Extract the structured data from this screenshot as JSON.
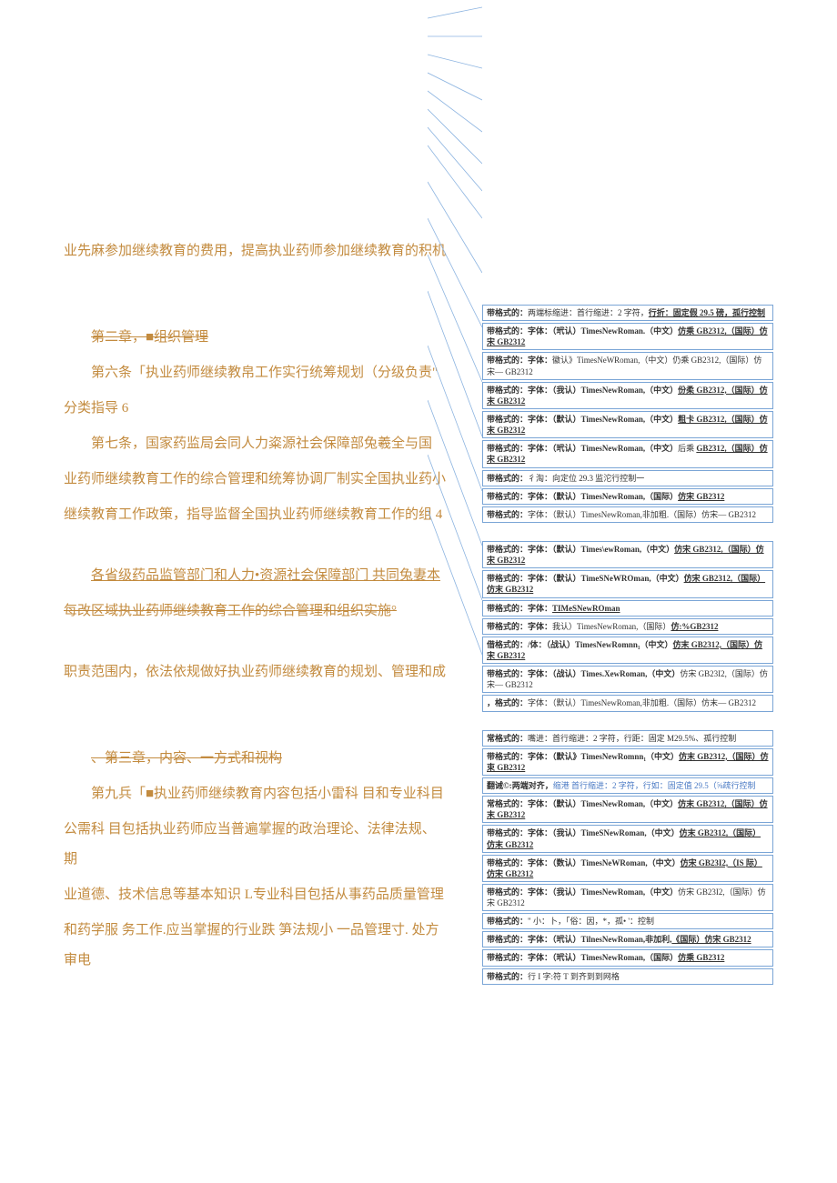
{
  "main": {
    "p1": "业先麻参加继续教育的费用，提高执业药师参加继续教育的积机",
    "ch2_title": "第二章，■组织管理",
    "p2a": "第六条「执业药师继续教帛工作实行统筹规划（分级负责\"",
    "p2b": "分类指导 6",
    "p3": "第七条，国家药监局会同人力粢源社会保障部兔羲全与国",
    "p4": "业药师继续教育工作的综合管理和统筹协调厂制实全国执业药小",
    "p5": "继续教育工作政策，指导监督全国执业药师继续教育工作的组 4",
    "p6": "各省级药品监管部门和人力•资源社会保障部门 共同兔妻本",
    "p7": "每改区域执业药师继续教育工作的综合管理和组织实施°",
    "p8": "职责范围内，依法依规做好执业药师继续教育的规划、管理和成",
    "ch3_title": "、第三章，内容、一方式和视构",
    "p9": "第九兵「■执业药师继续教育内容包括小雷科 目和专业科目",
    "p10": "公需科 目包括执业药师应当普遍掌握的政治理论、法律法规、期",
    "p11": "业道德、技术信息等基本知识 L专业科目包括从事药品质量管理",
    "p12": "和药学服 务工作.应当掌握的行业跌 笋法规小 一品管理寸. 处方审电"
  },
  "comments": [
    {
      "pre": "带格式的：",
      "txt": "两端标缩进：首行缩进：2 字符，",
      "u": "行折：固定假 29.5 磅，孤行控制"
    },
    {
      "pre": "带格式的：字体：（玳认）TimesNewRoman.（中文）",
      "u": "仿乘 GB2312,（国际）仿宋 GB2312"
    },
    {
      "pre": "带格式的：字体：",
      "txt": "徽认》TimesNeWRoman,（中文）仍乘 GB2312,（国际）仿宋— GB2312"
    },
    {
      "pre": "带格式的：字体：（我认）TimesNewRoman,（中文）",
      "u": "份柔 GB2312,（国际）仿末 GB2312"
    },
    {
      "pre": "带格式的：字体：（默认）TimesNewRoman,（中文）",
      "u": "粗卡 GB2312,（国际）仿末 GB2312"
    },
    {
      "pre": "带格式的：字体：（玳认）TimesNewRoman,（中文）",
      "txt": "后乘 ",
      "u": "GB2312,（国际）仿宋 GB2312"
    },
    {
      "pre": "带格式的：",
      "txt": "彳淘：向定位 29.3 监沱行控制一"
    },
    {
      "pre": "带格式的：字体：（默认）TimesNewRoman,（国际）",
      "u": "仿宋 GB2312"
    },
    {
      "pre": "带格式的：",
      "txt": "字体：（默认）TimesNewRoman,非加粗.（国际）仿宋— GB2312"
    },
    {
      "pre": "",
      "txt": "",
      "spacer": true
    },
    {
      "pre": "带格式的：字体：（默认）Times\\ewRoman,（中文）",
      "u": "仿宋 GB2312,（国际）仿宋 GB2312"
    },
    {
      "pre": "带格式的：字体：（默认）TimeSNeWROman,（中文）",
      "u": "仿宋 GB2312,（国际）仿末 GB2312"
    },
    {
      "pre": "带格式的：字体：",
      "u": "TIMeSNewROman"
    },
    {
      "pre": "带格式的：字体：",
      "txt": "我认）TimesNewRoman,（国际）",
      "u": "仿:%GB2312"
    },
    {
      "pre": "借格式的：/体：（战认）TimesNewRomnn₁（中文）",
      "u": "仿末 GB2312,（国际）仿宋 GB2312"
    },
    {
      "pre": "带格式的：字体：（战认）Times.XewRoman,（中文）",
      "txt": "仿宋 GB23I2,（国际）仿宋— GB2312"
    },
    {
      "pre": "，格式的：",
      "txt": "字体：（默认）TimesNewRoman,非加粗.（国际）仿末— GB2312"
    },
    {
      "pre": "",
      "txt": "",
      "spacer": true
    },
    {
      "pre": "常格式的：",
      "txt": "嘴进：首行缩进：2 字符，行距：固定 M29.5%、孤行控制"
    },
    {
      "pre": "带格式的：字体：（默认》TimesNewRomnn₁（中文）",
      "u": "仿末 GB2312,（国际）仿束 GB2312"
    },
    {
      "pre": "翻诫©:两端对齐，",
      "txt": "缩港 首行缩进：2 字符，行如：固定值 29.5（⅝疏行控制",
      "blue": true
    },
    {
      "pre": "常格式的：字体：（默认）TimesNewRoman,（中文）",
      "u": "仿末 GB2312,（国际）仿末 GB2312"
    },
    {
      "pre": "带格式的：字体：（我认）TimeSNewRoman,（中文）",
      "u": "仿末 GB2312,（国际）仿末 GB2312"
    },
    {
      "pre": "带格式的：字体：（数认）TimesNeWRoman,（中文）",
      "u": "仿宋 GB23I2,（IS 际）仿宋 GB2312"
    },
    {
      "pre": "带格式的：字体：（我认）TimesNewRoman,（中文）",
      "txt": "仿宋 GB23I2,（国际）仿宋 GB2312"
    },
    {
      "pre": "带格式的：",
      "txt": "\" 小：卜，「俗：因，*，孤• '：控制"
    },
    {
      "pre": "带格式的：字体：（玳认）TilnesNewRoman,非加利,",
      "u": "《国际）仿宋 GB2312"
    },
    {
      "pre": "带格式的：字体：（玳认）TimesNewRoman,（国际）",
      "u": "仿乘 GB2312"
    },
    {
      "pre": "带格式的：",
      "txt": "行 I 字:符 T 到齐到到网格"
    }
  ],
  "colors": {
    "body": "#c38b3f",
    "comment_border": "#7aa5d6",
    "leader": "#8bb3e0",
    "blue_text": "#4a7ac4"
  }
}
